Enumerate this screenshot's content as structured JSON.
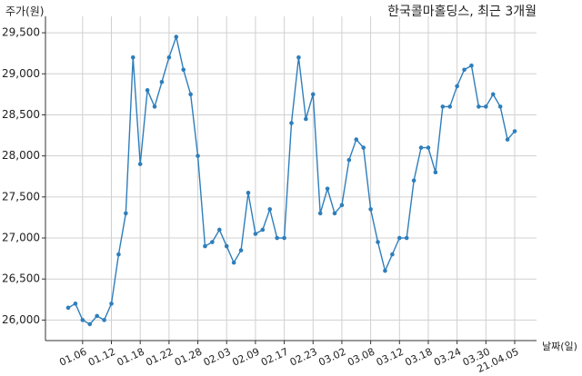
{
  "chart_data": {
    "type": "line",
    "title": "한국콜마홀딩스, 최근 3개월",
    "y_label": "주가(원)",
    "x_label": "날짜(일)",
    "categories": [
      null,
      null,
      "01.06",
      null,
      null,
      null,
      "01.12",
      null,
      null,
      null,
      "01.18",
      null,
      null,
      null,
      "01.22",
      null,
      null,
      null,
      "01.28",
      null,
      null,
      null,
      "02.03",
      null,
      null,
      null,
      "02.09",
      null,
      null,
      null,
      "02.17",
      null,
      null,
      null,
      "02.23",
      null,
      null,
      null,
      "03.02",
      null,
      null,
      null,
      "03.08",
      null,
      null,
      null,
      "03.12",
      null,
      null,
      null,
      "03.18",
      null,
      null,
      null,
      "03.24",
      null,
      null,
      null,
      "03.30",
      null,
      null,
      null,
      "21.04.05"
    ],
    "series": [
      {
        "color": "#2e7ebb",
        "values": [
          26150,
          26200,
          26000,
          25950,
          26050,
          26000,
          26200,
          26800,
          27300,
          29200,
          27900,
          28800,
          28600,
          28900,
          29200,
          29450,
          29050,
          28750,
          28000,
          26900,
          26950,
          27100,
          26900,
          26700,
          26850,
          27550,
          27050,
          27100,
          27350,
          27000,
          27000,
          28400,
          29200,
          28450,
          28750,
          27300,
          27600,
          27300,
          27400,
          27950,
          28200,
          28100,
          27350,
          26950,
          26600,
          26800,
          27000,
          27000,
          27700,
          28100,
          28100,
          27800,
          28600,
          28600,
          28850,
          29050,
          29100,
          28600,
          28600,
          28750,
          28600,
          28200,
          28300
        ]
      }
    ],
    "ylim": [
      25750,
      29700
    ],
    "yticks": [
      {
        "value": 26000,
        "label": "26,000"
      },
      {
        "value": 26500,
        "label": "26,500"
      },
      {
        "value": 27000,
        "label": "27,000"
      },
      {
        "value": 27500,
        "label": "27,500"
      },
      {
        "value": 28000,
        "label": "28,000"
      },
      {
        "value": 28500,
        "label": "28,500"
      },
      {
        "value": 29000,
        "label": "29,000"
      },
      {
        "value": 29500,
        "label": "29,500"
      }
    ],
    "grid": true
  }
}
